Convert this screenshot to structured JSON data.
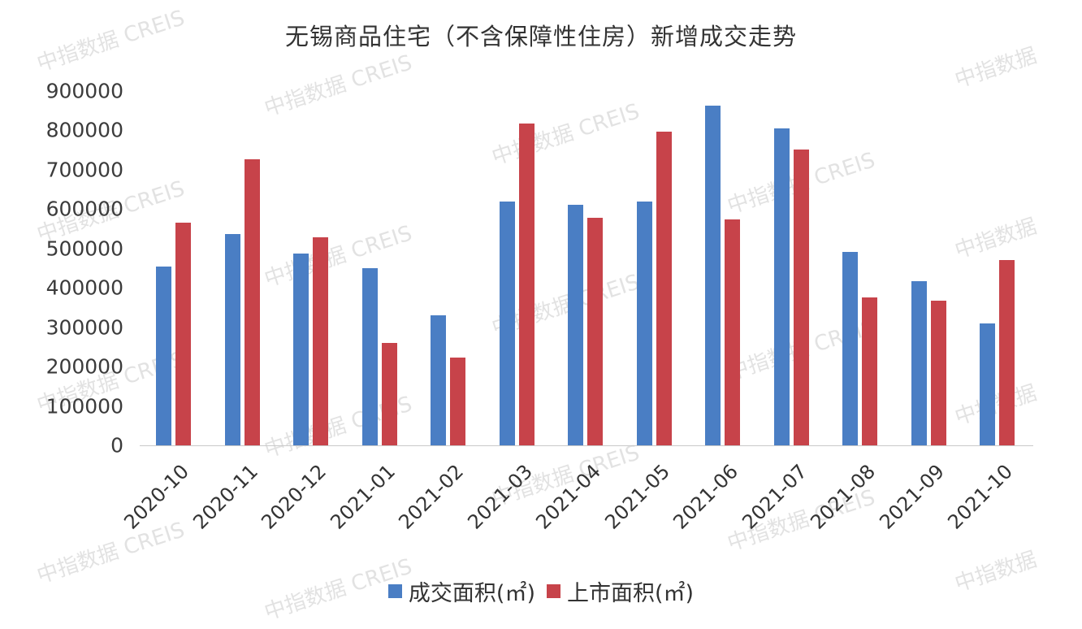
{
  "chart_data": {
    "type": "bar",
    "title": "无锡商品住宅（不含保障性住房）新增成交走势",
    "xlabel": "",
    "ylabel": "",
    "ylim": [
      0,
      900000
    ],
    "yticks": [
      "900000",
      "800000",
      "700000",
      "600000",
      "500000",
      "400000",
      "300000",
      "200000",
      "100000",
      "0"
    ],
    "grid": false,
    "legend_position": "bottom",
    "categories": [
      "2020-10",
      "2020-11",
      "2020-12",
      "2021-01",
      "2021-02",
      "2021-03",
      "2021-04",
      "2021-05",
      "2021-06",
      "2021-07",
      "2021-08",
      "2021-09",
      "2021-10"
    ],
    "series": [
      {
        "name": "成交面积(㎡)",
        "color": "#4a7ec4",
        "values": [
          454000,
          537000,
          487000,
          450000,
          330000,
          619000,
          611000,
          619000,
          863000,
          805000,
          491000,
          417000,
          310000
        ]
      },
      {
        "name": "上市面积(㎡)",
        "color": "#c7434a",
        "values": [
          566000,
          727000,
          528000,
          260000,
          223000,
          817000,
          578000,
          797000,
          574000,
          751000,
          376000,
          367000,
          471000
        ]
      }
    ],
    "watermark": "中指数据 CREIS"
  }
}
